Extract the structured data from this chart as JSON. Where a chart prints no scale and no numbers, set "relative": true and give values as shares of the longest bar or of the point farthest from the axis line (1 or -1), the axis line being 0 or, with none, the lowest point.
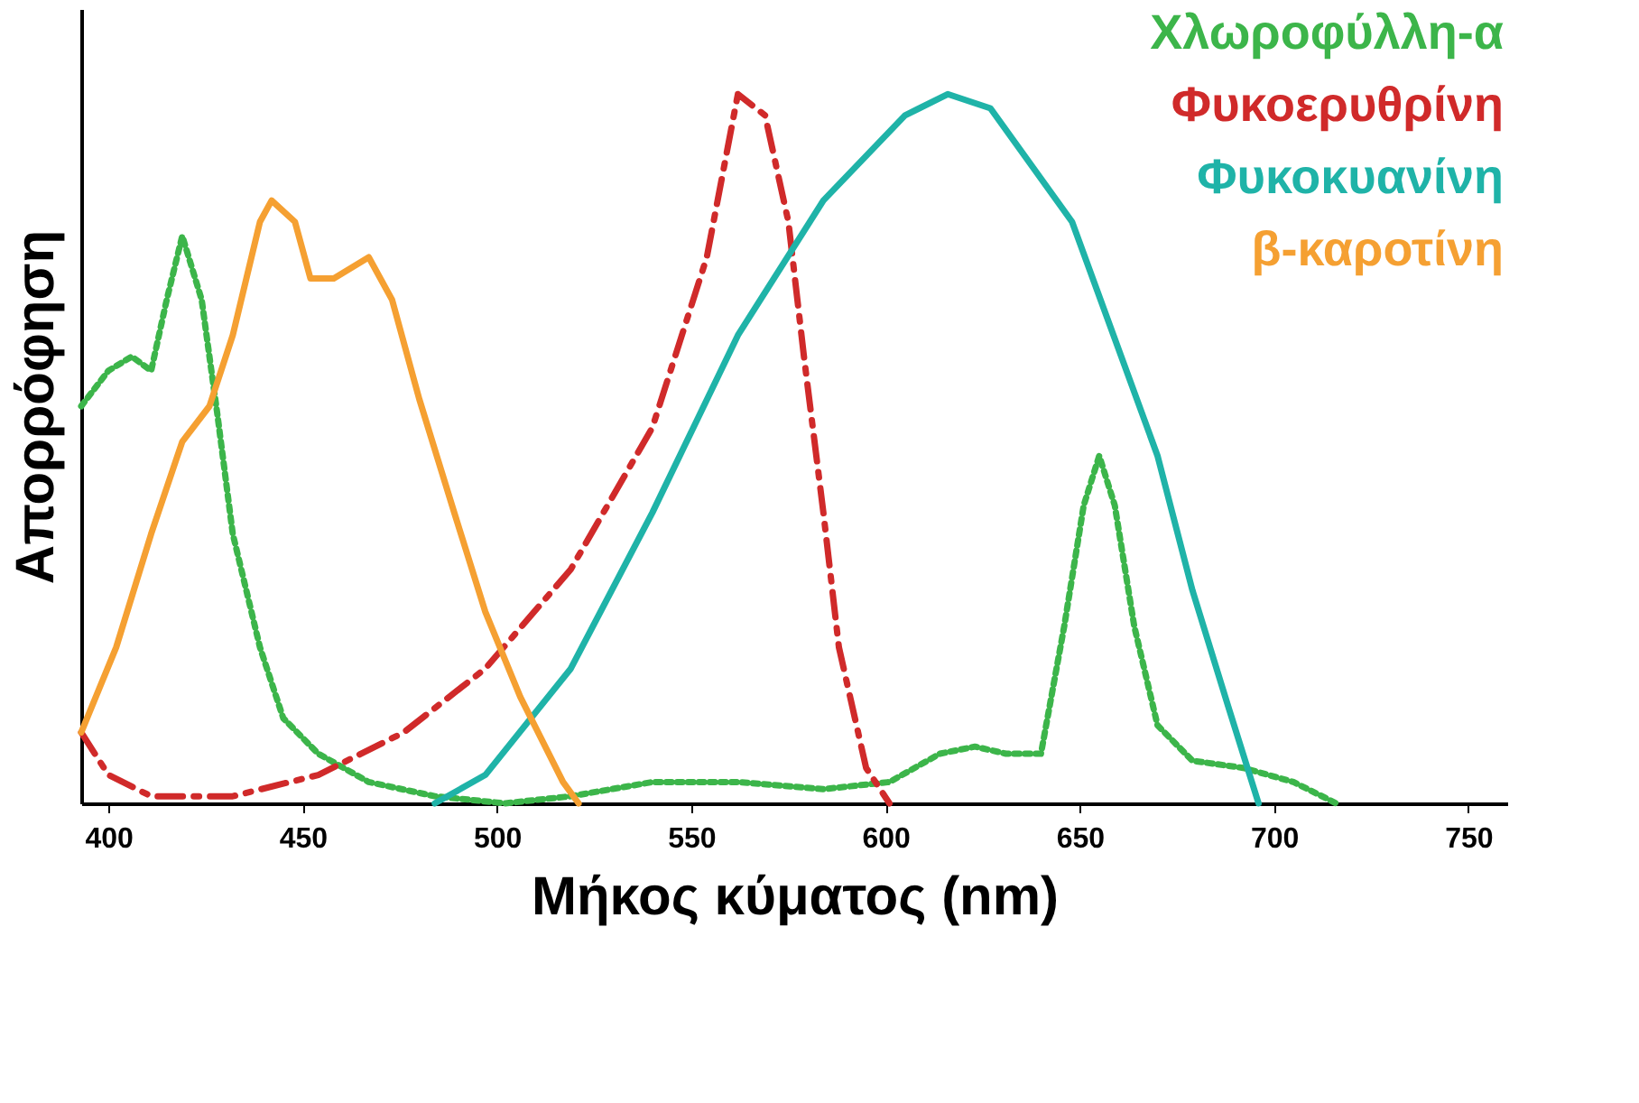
{
  "chart_data": {
    "type": "line",
    "xlabel": "Μήκος κύματος (nm)",
    "ylabel": "Απορρόφηση",
    "relative": true,
    "xlim": [
      393,
      760
    ],
    "xticks": [
      400,
      450,
      500,
      550,
      600,
      650,
      700,
      750
    ],
    "grid": false,
    "legend": "top right",
    "series": [
      {
        "name": "Χλωροφύλλη-α",
        "color": "#3cb54a",
        "line_style": "dotted",
        "x": [
          393,
          400,
          406,
          411,
          415,
          419,
          424,
          428,
          432,
          439,
          445,
          454,
          467,
          484,
          502,
          519,
          540,
          562,
          584,
          601,
          614,
          623,
          631,
          640,
          646,
          651,
          655,
          659,
          664,
          670,
          679,
          692,
          705,
          716
        ],
        "values": [
          0.56,
          0.61,
          0.63,
          0.61,
          0.71,
          0.8,
          0.71,
          0.55,
          0.38,
          0.22,
          0.12,
          0.07,
          0.03,
          0.01,
          0,
          0.01,
          0.03,
          0.03,
          0.02,
          0.03,
          0.07,
          0.08,
          0.07,
          0.07,
          0.25,
          0.42,
          0.49,
          0.42,
          0.25,
          0.11,
          0.06,
          0.05,
          0.03,
          0
        ]
      },
      {
        "name": "Φυκοερυθρίνη",
        "color": "#d02a2a",
        "line_style": "dashed",
        "x": [
          393,
          400,
          411,
          432,
          454,
          476,
          497,
          519,
          540,
          554,
          562,
          569,
          575,
          579,
          584,
          588,
          595,
          601
        ],
        "values": [
          0.1,
          0.04,
          0.01,
          0.01,
          0.04,
          0.1,
          0.19,
          0.33,
          0.53,
          0.77,
          1.0,
          0.97,
          0.82,
          0.63,
          0.41,
          0.22,
          0.05,
          0
        ]
      },
      {
        "name": "Φυκοκυανίνη",
        "color": "#1fb3a8",
        "line_style": "solid",
        "x": [
          484,
          497,
          519,
          540,
          562,
          584,
          605,
          616,
          627,
          648,
          670,
          679,
          688,
          696
        ],
        "values": [
          0,
          0.04,
          0.19,
          0.41,
          0.66,
          0.85,
          0.97,
          1.0,
          0.98,
          0.82,
          0.49,
          0.3,
          0.14,
          0
        ]
      },
      {
        "name": "β-καροτίνη",
        "color": "#f5a032",
        "line_style": "solid",
        "x": [
          393,
          402,
          411,
          419,
          426,
          432,
          439,
          442,
          448,
          452,
          458,
          467,
          473,
          480,
          489,
          497,
          506,
          517,
          521
        ],
        "values": [
          0.1,
          0.22,
          0.38,
          0.51,
          0.56,
          0.66,
          0.82,
          0.85,
          0.82,
          0.74,
          0.74,
          0.77,
          0.71,
          0.57,
          0.41,
          0.27,
          0.15,
          0.03,
          0
        ]
      }
    ]
  }
}
